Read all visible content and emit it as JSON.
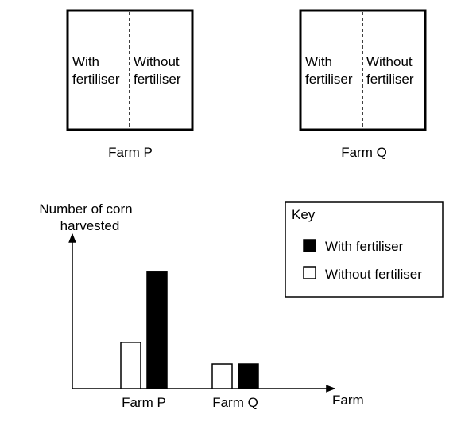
{
  "farm_diagrams": [
    {
      "left_label": [
        "With",
        "fertiliser"
      ],
      "right_label": [
        "Without",
        "fertiliser"
      ],
      "caption": "Farm P"
    },
    {
      "left_label": [
        "With",
        "fertiliser"
      ],
      "right_label": [
        "Without",
        "fertiliser"
      ],
      "caption": "Farm Q"
    }
  ],
  "chart_data": {
    "type": "bar",
    "ylabel": [
      "Number of corn",
      "harvested"
    ],
    "xlabel": "Farm",
    "categories": [
      "Farm P",
      "Farm Q"
    ],
    "series": [
      {
        "name": "Without fertiliser",
        "values": [
          60,
          32
        ],
        "color": "#ffffff"
      },
      {
        "name": "With fertiliser",
        "values": [
          152,
          32
        ],
        "color": "#000000"
      }
    ],
    "ylim": [
      0,
      190
    ],
    "grid": false,
    "legend": {
      "title": "Key",
      "position": "top-right"
    }
  }
}
